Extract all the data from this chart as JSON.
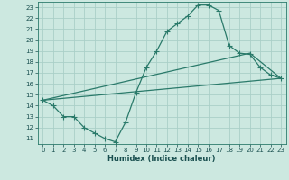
{
  "xlabel": "Humidex (Indice chaleur)",
  "bg_color": "#cce8e0",
  "grid_color": "#aacfc8",
  "line_color": "#2a7a6a",
  "xlim": [
    -0.5,
    23.5
  ],
  "ylim": [
    10.5,
    23.5
  ],
  "xticks": [
    0,
    1,
    2,
    3,
    4,
    5,
    6,
    7,
    8,
    9,
    10,
    11,
    12,
    13,
    14,
    15,
    16,
    17,
    18,
    19,
    20,
    21,
    22,
    23
  ],
  "yticks": [
    11,
    12,
    13,
    14,
    15,
    16,
    17,
    18,
    19,
    20,
    21,
    22,
    23
  ],
  "line1_x": [
    0,
    1,
    2,
    3,
    4,
    5,
    6,
    7,
    8,
    9,
    10,
    11,
    12,
    13,
    14,
    15,
    16,
    17,
    18,
    19,
    20,
    21,
    22,
    23
  ],
  "line1_y": [
    14.5,
    14.0,
    13.0,
    13.0,
    12.0,
    11.5,
    11.0,
    10.7,
    12.5,
    15.2,
    17.5,
    19.0,
    20.8,
    21.5,
    22.2,
    23.2,
    23.2,
    22.7,
    19.5,
    18.8,
    18.7,
    17.5,
    16.8,
    16.5
  ],
  "line2_x": [
    0,
    20,
    23
  ],
  "line2_y": [
    14.5,
    18.8,
    16.5
  ],
  "line3_x": [
    0,
    23
  ],
  "line3_y": [
    14.5,
    16.5
  ],
  "marker_size": 2.5
}
